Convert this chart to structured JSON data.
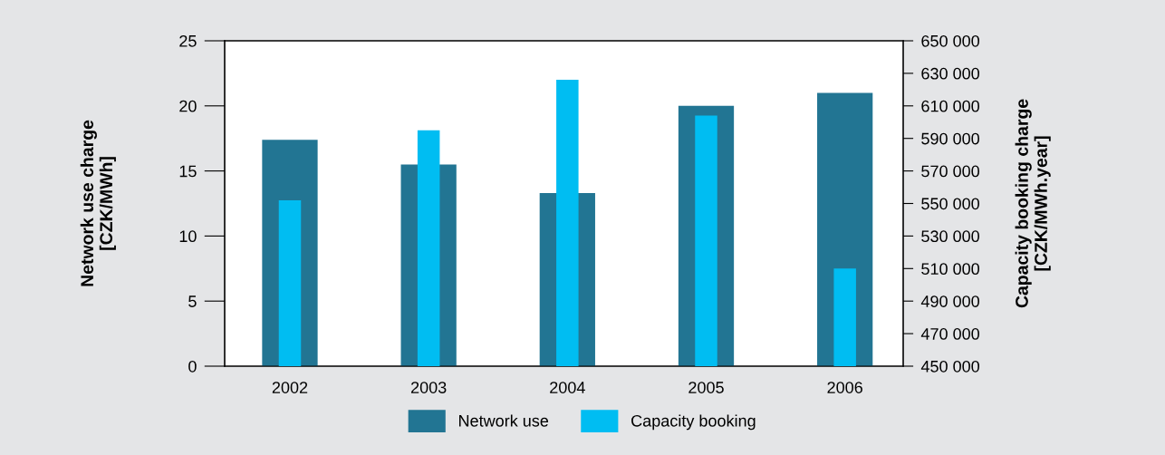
{
  "chart_data": {
    "type": "bar",
    "categories": [
      "2002",
      "2003",
      "2004",
      "2005",
      "2006"
    ],
    "series": [
      {
        "name": "Network use",
        "color": "#227593",
        "values": [
          17.4,
          15.5,
          13.3,
          20.0,
          21.0
        ]
      },
      {
        "name": "Capacity booking",
        "color": "#00bdf2",
        "axis": "y2",
        "values": [
          552000,
          595000,
          626000,
          604000,
          510000
        ]
      }
    ],
    "ylabel": "Network use charge\n[CZK/MWh]",
    "y2label": "Capacity booking charge\n[CZK/MWh.year]",
    "ylim": [
      0,
      25
    ],
    "yticks": [
      0,
      5,
      10,
      15,
      20,
      25
    ],
    "y2lim": [
      450000,
      650000
    ],
    "y2ticks": [
      {
        "value": 450000,
        "label": "450 000"
      },
      {
        "value": 470000,
        "label": "470 000"
      },
      {
        "value": 490000,
        "label": "490 000"
      },
      {
        "value": 510000,
        "label": "510 000"
      },
      {
        "value": 530000,
        "label": "530 000"
      },
      {
        "value": 550000,
        "label": "550 000"
      },
      {
        "value": 570000,
        "label": "570 000"
      },
      {
        "value": 590000,
        "label": "590 000"
      },
      {
        "value": 610000,
        "label": "610 000"
      },
      {
        "value": 630000,
        "label": "630 000"
      },
      {
        "value": 650000,
        "label": "650 000"
      }
    ],
    "legend": "bottom",
    "grid": false
  }
}
